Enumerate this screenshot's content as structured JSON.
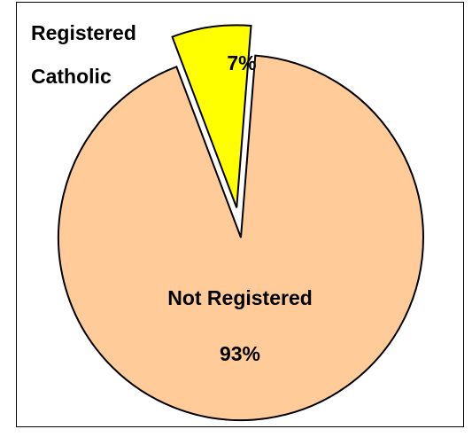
{
  "chart_data": {
    "type": "pie",
    "slices": [
      {
        "name": "Registered Catholic",
        "label_lines": [
          "Registered",
          "Catholic"
        ],
        "value": 7,
        "value_label": "7%",
        "color": "#FFFF00",
        "exploded": true
      },
      {
        "name": "Not Registered",
        "label_lines": [
          "Not Registered"
        ],
        "value": 93,
        "value_label": "93%",
        "color": "#FFCC99",
        "exploded": false
      }
    ],
    "outline_color": "#000000"
  }
}
